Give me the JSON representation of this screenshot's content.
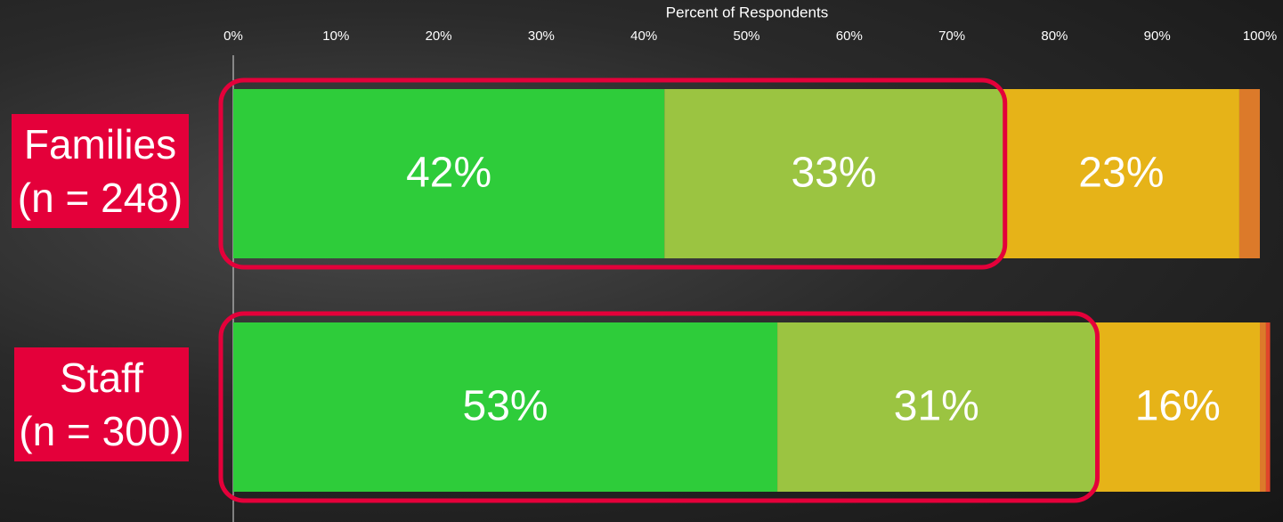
{
  "chart_data": {
    "type": "stacked_bar_horizontal",
    "x_label": "Percent of Respondents",
    "categories": [
      "Families\n(n = 248)",
      "Staff\n(n = 300)"
    ],
    "xlim": [
      0,
      100
    ],
    "xticks": [
      {
        "value": 0,
        "label": "0%"
      },
      {
        "value": 10,
        "label": "10%"
      },
      {
        "value": 20,
        "label": "20%"
      },
      {
        "value": 30,
        "label": "30%"
      },
      {
        "value": 40,
        "label": "40%"
      },
      {
        "value": 50,
        "label": "50%"
      },
      {
        "value": 60,
        "label": "60%"
      },
      {
        "value": 70,
        "label": "70%"
      },
      {
        "value": 80,
        "label": "80%"
      },
      {
        "value": 90,
        "label": "90%"
      },
      {
        "value": 100,
        "label": "100%"
      }
    ],
    "series": [
      {
        "color": "#2ecc3a",
        "values": [
          42,
          53
        ],
        "value_labels": [
          "42%",
          "53%"
        ]
      },
      {
        "color": "#9bc441",
        "values": [
          33,
          31
        ],
        "value_labels": [
          "33%",
          "31%"
        ]
      },
      {
        "color": "#e6b318",
        "values": [
          23,
          16
        ],
        "value_labels": [
          "23%",
          "16%"
        ]
      },
      {
        "color": "#dc7a2a",
        "values": [
          2,
          0.6
        ]
      },
      {
        "color": "#e0452a",
        "values": [
          0,
          0.4
        ]
      }
    ],
    "highlight_color": "#e4003a"
  }
}
